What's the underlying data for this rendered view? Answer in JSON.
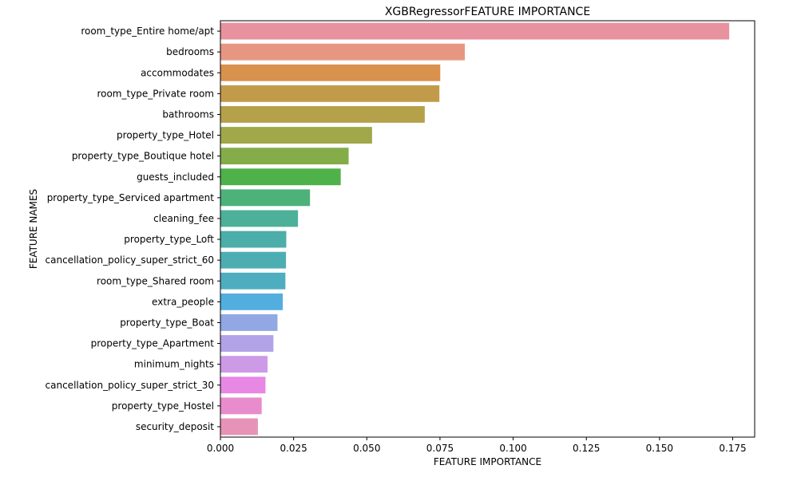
{
  "chart_data": {
    "type": "bar",
    "orientation": "horizontal",
    "title": "XGBRegressorFEATURE IMPORTANCE",
    "xlabel": "FEATURE IMPORTANCE",
    "ylabel": "FEATURE NAMES",
    "xlim": [
      0,
      0.1825
    ],
    "xticks": [
      "0.000",
      "0.025",
      "0.050",
      "0.075",
      "0.100",
      "0.125",
      "0.150",
      "0.175"
    ],
    "grid": false,
    "categories": [
      "room_type_Entire home/apt",
      "bedrooms",
      "accommodates",
      "room_type_Private room",
      "bathrooms",
      "property_type_Hotel",
      "property_type_Boutique hotel",
      "guests_included",
      "property_type_Serviced apartment",
      "cleaning_fee",
      "property_type_Loft",
      "cancellation_policy_super_strict_60",
      "room_type_Shared room",
      "extra_people",
      "property_type_Boat",
      "property_type_Apartment",
      "minimum_nights",
      "cancellation_policy_super_strict_30",
      "property_type_Hostel",
      "security_deposit"
    ],
    "values": [
      0.1738,
      0.0835,
      0.0751,
      0.0748,
      0.0698,
      0.0518,
      0.0438,
      0.0411,
      0.0306,
      0.0265,
      0.0225,
      0.0224,
      0.0222,
      0.0213,
      0.0195,
      0.0181,
      0.0161,
      0.0154,
      0.0141,
      0.0128
    ],
    "colors": [
      "#e8929f",
      "#e79781",
      "#d8924e",
      "#c29b4a",
      "#b5a14a",
      "#a0a84a",
      "#84ad4a",
      "#4fb14a",
      "#4db17a",
      "#4db098",
      "#4caea8",
      "#4daeb2",
      "#4fadc0",
      "#53aee0",
      "#92a8e4",
      "#b2a3e8",
      "#cd9ae8",
      "#e688e4",
      "#e88ccd",
      "#e793b8"
    ]
  }
}
